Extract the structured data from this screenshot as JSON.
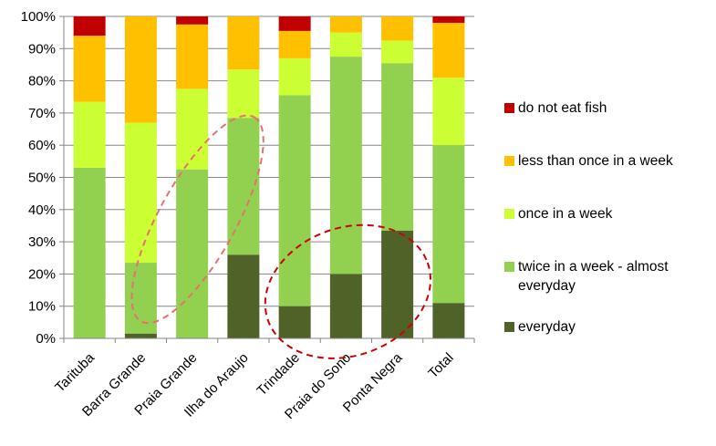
{
  "chart_data": {
    "type": "bar",
    "stacked": true,
    "percent": true,
    "title": "",
    "xlabel": "",
    "ylabel": "",
    "ylim": [
      0,
      100
    ],
    "yticks": [
      "0%",
      "10%",
      "20%",
      "30%",
      "40%",
      "50%",
      "60%",
      "70%",
      "80%",
      "90%",
      "100%"
    ],
    "categories": [
      "Tarituba",
      "Barra Grande",
      "Praia Grande",
      "Ilha do Araujo",
      "Trindade",
      "Praia do Sono",
      "Ponta Negra",
      "Total"
    ],
    "series": [
      {
        "name": "everyday",
        "color": "#4f6228",
        "values": [
          0,
          1.5,
          0,
          26,
          10,
          20,
          33.5,
          11
        ]
      },
      {
        "name": "twice in a week - almost everyday",
        "color": "#92d050",
        "values": [
          53,
          22,
          52.5,
          42.5,
          65.5,
          67.5,
          52,
          49
        ]
      },
      {
        "name": "once in a week",
        "color": "#ccff33",
        "values": [
          20.5,
          43.5,
          25,
          15,
          11.5,
          7.5,
          7,
          21
        ]
      },
      {
        "name": "less than once in a week",
        "color": "#ffc000",
        "values": [
          20.5,
          33,
          20,
          16.5,
          8.5,
          5,
          7.5,
          17
        ]
      },
      {
        "name": "do not eat fish",
        "color": "#c00000",
        "values": [
          6,
          0,
          2.5,
          0,
          4.5,
          0,
          0,
          2
        ]
      }
    ],
    "legend_order": [
      "do not eat fish",
      "less than once in a week",
      "once in a week",
      "twice in a week - almost everyday",
      "everyday"
    ],
    "legend_position": "right",
    "grid": true,
    "annotations": [
      {
        "shape": "dashed-ellipse",
        "color": "#e87070",
        "around": [
          "Barra Grande",
          "Praia Grande",
          "Ilha do Araujo"
        ]
      },
      {
        "shape": "dashed-ellipse",
        "color": "#d00000",
        "around": [
          "Trindade",
          "Praia do Sono",
          "Ponta Negra"
        ]
      }
    ]
  }
}
